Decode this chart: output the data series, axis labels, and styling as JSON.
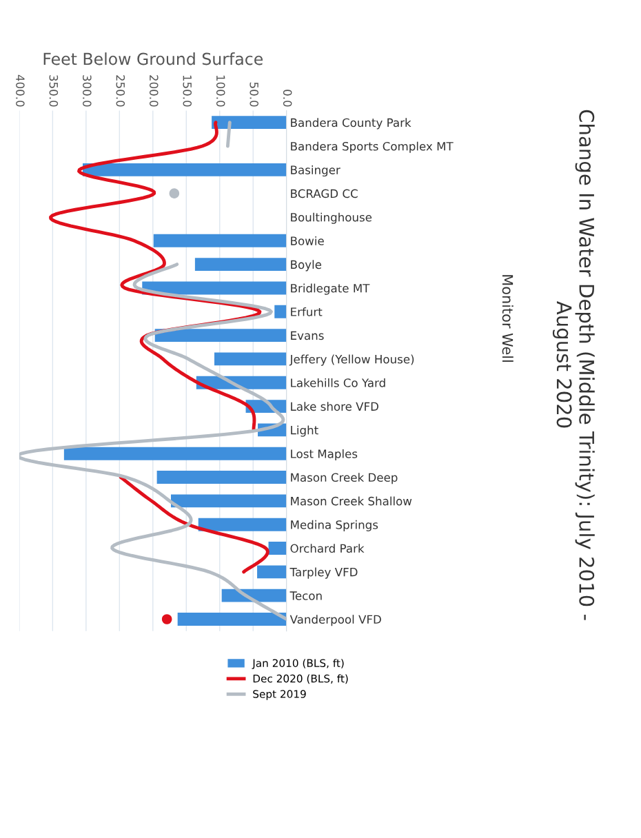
{
  "chart_data": {
    "type": "bar",
    "orientation": "horizontal",
    "title": "Change In Water Depth (Middle Trinity): July 2010 -\nAugust 2020",
    "xlabel": "Feet Below Ground Surface",
    "ylabel": "Monitor Well",
    "categories": [
      "Bandera County Park",
      "Bandera Sports Complex MT",
      "Basinger",
      "BCRAGD CC",
      "Boultinghouse",
      "Bowie",
      "Boyle",
      "Bridlegate MT",
      "Erfurt",
      "Evans",
      "Jeffery (Yellow House)",
      "Lakehills Co Yard",
      "Lake shore VFD",
      "Light",
      "Lost Maples",
      "Mason Creek Deep",
      "Mason Creek Shallow",
      "Medina Springs",
      "Orchard Park",
      "Tarpley VFD",
      "Tecon",
      "Vanderpool VFD"
    ],
    "series": [
      {
        "name": "Jan 2010 (BLS, ft)",
        "color": "#3f8fdc",
        "values": [
          112,
          null,
          305,
          null,
          null,
          199,
          137,
          216,
          18,
          197,
          108,
          135,
          61,
          43,
          333,
          194,
          173,
          132,
          27,
          44,
          97,
          163
        ]
      },
      {
        "name": "Dec 2020 (BLS, ft)",
        "type": "line",
        "color": "#e0101c",
        "values": [
          106,
          126,
          310,
          198,
          353,
          228,
          183,
          242,
          40,
          209,
          185,
          133,
          57,
          49,
          null,
          248,
          202,
          147,
          31,
          64,
          null,
          179
        ]
      },
      {
        "name": "Sept 2019",
        "type": "line",
        "color": "#b4bcc4",
        "values": [
          85,
          88,
          null,
          168,
          null,
          null,
          164,
          223,
          23,
          207,
          147,
          82,
          23,
          40,
          397,
          240,
          175,
          147,
          261,
          116,
          61,
          0
        ]
      }
    ],
    "xlim": [
      400,
      0
    ],
    "xticks": [
      {
        "value": 400,
        "label": "400.0"
      },
      {
        "value": 350,
        "label": "350.0"
      },
      {
        "value": 300,
        "label": "300.0"
      },
      {
        "value": 250,
        "label": "250.0"
      },
      {
        "value": 200,
        "label": "200.0"
      },
      {
        "value": 150,
        "label": "150.0"
      },
      {
        "value": 100,
        "label": "100.0"
      },
      {
        "value": 50,
        "label": "50.0"
      },
      {
        "value": 0,
        "label": "0.0"
      }
    ],
    "grid": "x",
    "legend": "bottom"
  }
}
